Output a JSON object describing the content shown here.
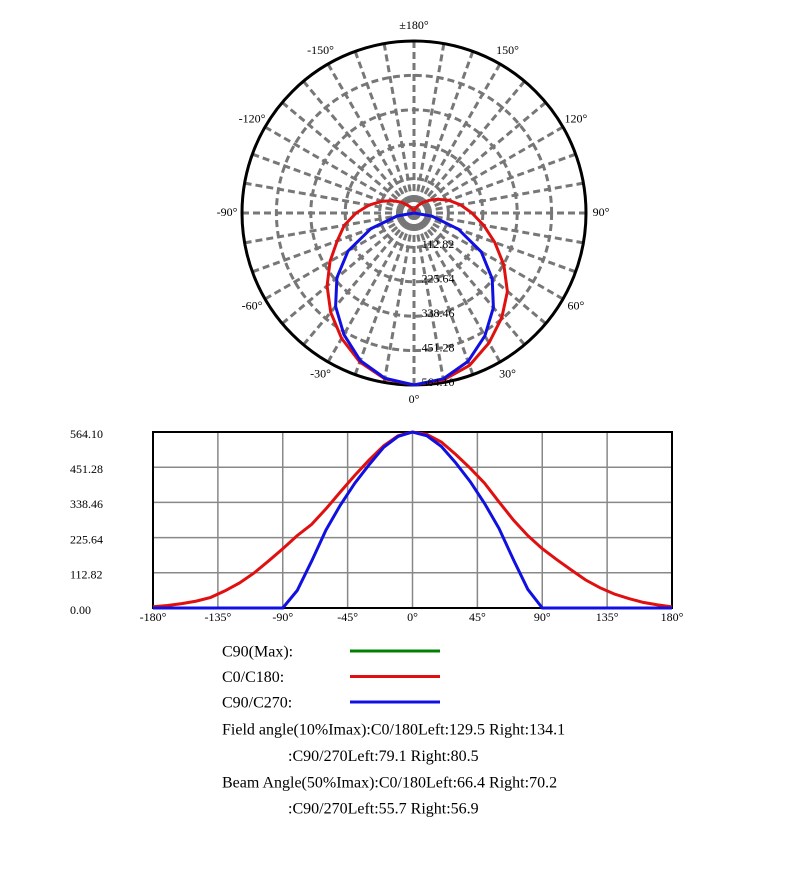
{
  "chart_data": [
    {
      "type": "polar",
      "angle_ticks": [
        {
          "value": 180,
          "label": "±180°"
        },
        {
          "value": 150,
          "label": "150°"
        },
        {
          "value": 120,
          "label": "120°"
        },
        {
          "value": 90,
          "label": "90°"
        },
        {
          "value": 60,
          "label": "60°"
        },
        {
          "value": 30,
          "label": "30°"
        },
        {
          "value": 0,
          "label": "0°"
        },
        {
          "value": -30,
          "label": "-30°"
        },
        {
          "value": -60,
          "label": "-60°"
        },
        {
          "value": -90,
          "label": "-90°"
        },
        {
          "value": -120,
          "label": "-120°"
        },
        {
          "value": -150,
          "label": "-150°"
        }
      ],
      "rlim": [
        0,
        564.1
      ],
      "rticks": [
        112.82,
        225.64,
        338.46,
        451.28,
        {
          "value": 564.1,
          "label": "564.10"
        }
      ]
    },
    {
      "type": "line",
      "x": [
        -180,
        -170,
        -160,
        -150,
        -140,
        -130,
        -120,
        -110,
        -100,
        -90,
        -80,
        -70,
        -60,
        -50,
        -40,
        -30,
        -20,
        -10,
        0,
        10,
        20,
        30,
        40,
        50,
        60,
        70,
        80,
        90,
        100,
        110,
        120,
        130,
        140,
        150,
        160,
        170,
        180
      ],
      "series": [
        {
          "name": "C90(Max):",
          "color": "#008000"
        },
        {
          "name": "C0/C180:",
          "color": "#e01010",
          "values": [
            4,
            8,
            14,
            22,
            34,
            55,
            80,
            112,
            150,
            190,
            232,
            268,
            318,
            372,
            425,
            475,
            520,
            552,
            564,
            556,
            532,
            492,
            448,
            400,
            340,
            282,
            232,
            190,
            155,
            122,
            90,
            65,
            45,
            30,
            18,
            10,
            4
          ]
        },
        {
          "name": "C90/C270:",
          "color": "#1010e0",
          "values": [
            0,
            0,
            0,
            0,
            0,
            0,
            0,
            0,
            0,
            0,
            56,
            150,
            250,
            330,
            400,
            460,
            515,
            550,
            564,
            552,
            518,
            465,
            405,
            335,
            255,
            155,
            60,
            0,
            0,
            0,
            0,
            0,
            0,
            0,
            0,
            0,
            0
          ]
        }
      ],
      "xlim": [
        -180,
        180
      ],
      "xticks": [
        {
          "value": -180,
          "label": "-180°"
        },
        {
          "value": -135,
          "label": "-135°"
        },
        {
          "value": -90,
          "label": "-90°"
        },
        {
          "value": -45,
          "label": "-45°"
        },
        {
          "value": 0,
          "label": "0°"
        },
        {
          "value": 45,
          "label": "45°"
        },
        {
          "value": 90,
          "label": "90°"
        },
        {
          "value": 135,
          "label": "135°"
        },
        {
          "value": 180,
          "label": "180°"
        }
      ],
      "ylim": [
        0,
        564.1
      ],
      "yticks": [
        {
          "value": 0,
          "label": "0.00"
        },
        112.82,
        225.64,
        338.46,
        451.28,
        {
          "value": 564.1,
          "label": "564.10"
        }
      ],
      "grid": true
    }
  ],
  "notes": [
    "Field angle(10%Imax):C0/180Left:129.5 Right:134.1",
    ":C90/270Left:79.1 Right:80.5",
    "Beam Angle(50%Imax):C0/180Left:66.4 Right:70.2",
    ":C90/270Left:55.7 Right:56.9"
  ]
}
